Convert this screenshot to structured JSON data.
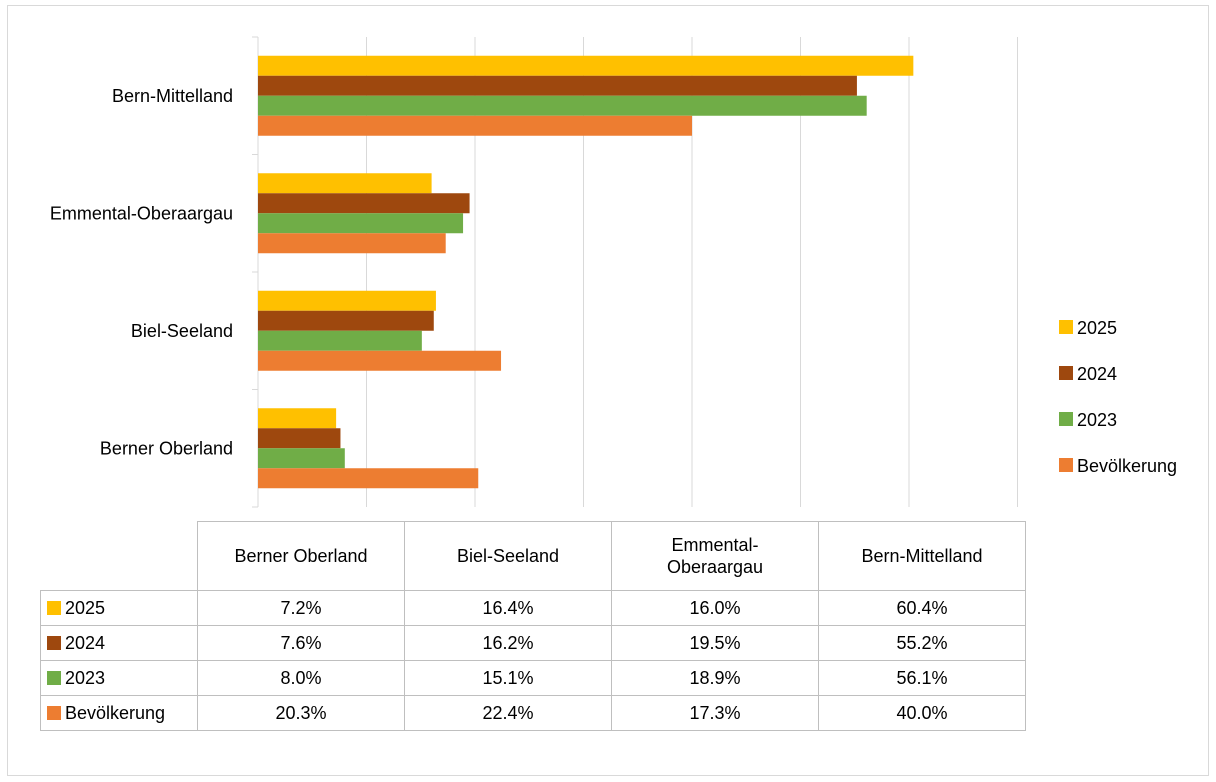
{
  "chart_data": {
    "type": "bar",
    "orientation": "horizontal",
    "categories": [
      "Berner Oberland",
      "Biel-Seeland",
      "Emmental-Oberaargau",
      "Bern-Mittelland"
    ],
    "series": [
      {
        "name": "2025",
        "color": "#ffc000",
        "values": [
          7.2,
          16.4,
          16.0,
          60.4
        ]
      },
      {
        "name": "2024",
        "color": "#9e480e",
        "values": [
          7.6,
          16.2,
          19.5,
          55.2
        ]
      },
      {
        "name": "2023",
        "color": "#70ad47",
        "values": [
          8.0,
          15.1,
          18.9,
          56.1
        ]
      },
      {
        "name": "Bevölkerung",
        "color": "#ed7d31",
        "values": [
          20.3,
          22.4,
          17.3,
          40.0
        ]
      }
    ],
    "xlim": [
      0,
      70
    ],
    "grid": true,
    "legend_position": "right"
  },
  "table": {
    "headers": [
      "Berner Oberland",
      "Biel-Seeland",
      "Emmental-Oberaargau",
      "Bern-Mittelland"
    ],
    "rows": [
      {
        "label": "2025",
        "color": "#ffc000",
        "cells": [
          "7.2%",
          "16.4%",
          "16.0%",
          "60.4%"
        ]
      },
      {
        "label": "2024",
        "color": "#9e480e",
        "cells": [
          "7.6%",
          "16.2%",
          "19.5%",
          "55.2%"
        ]
      },
      {
        "label": "2023",
        "color": "#70ad47",
        "cells": [
          "8.0%",
          "15.1%",
          "18.9%",
          "56.1%"
        ]
      },
      {
        "label": "Bevölkerung",
        "color": "#ed7d31",
        "cells": [
          "20.3%",
          "22.4%",
          "17.3%",
          "40.0%"
        ]
      }
    ]
  }
}
